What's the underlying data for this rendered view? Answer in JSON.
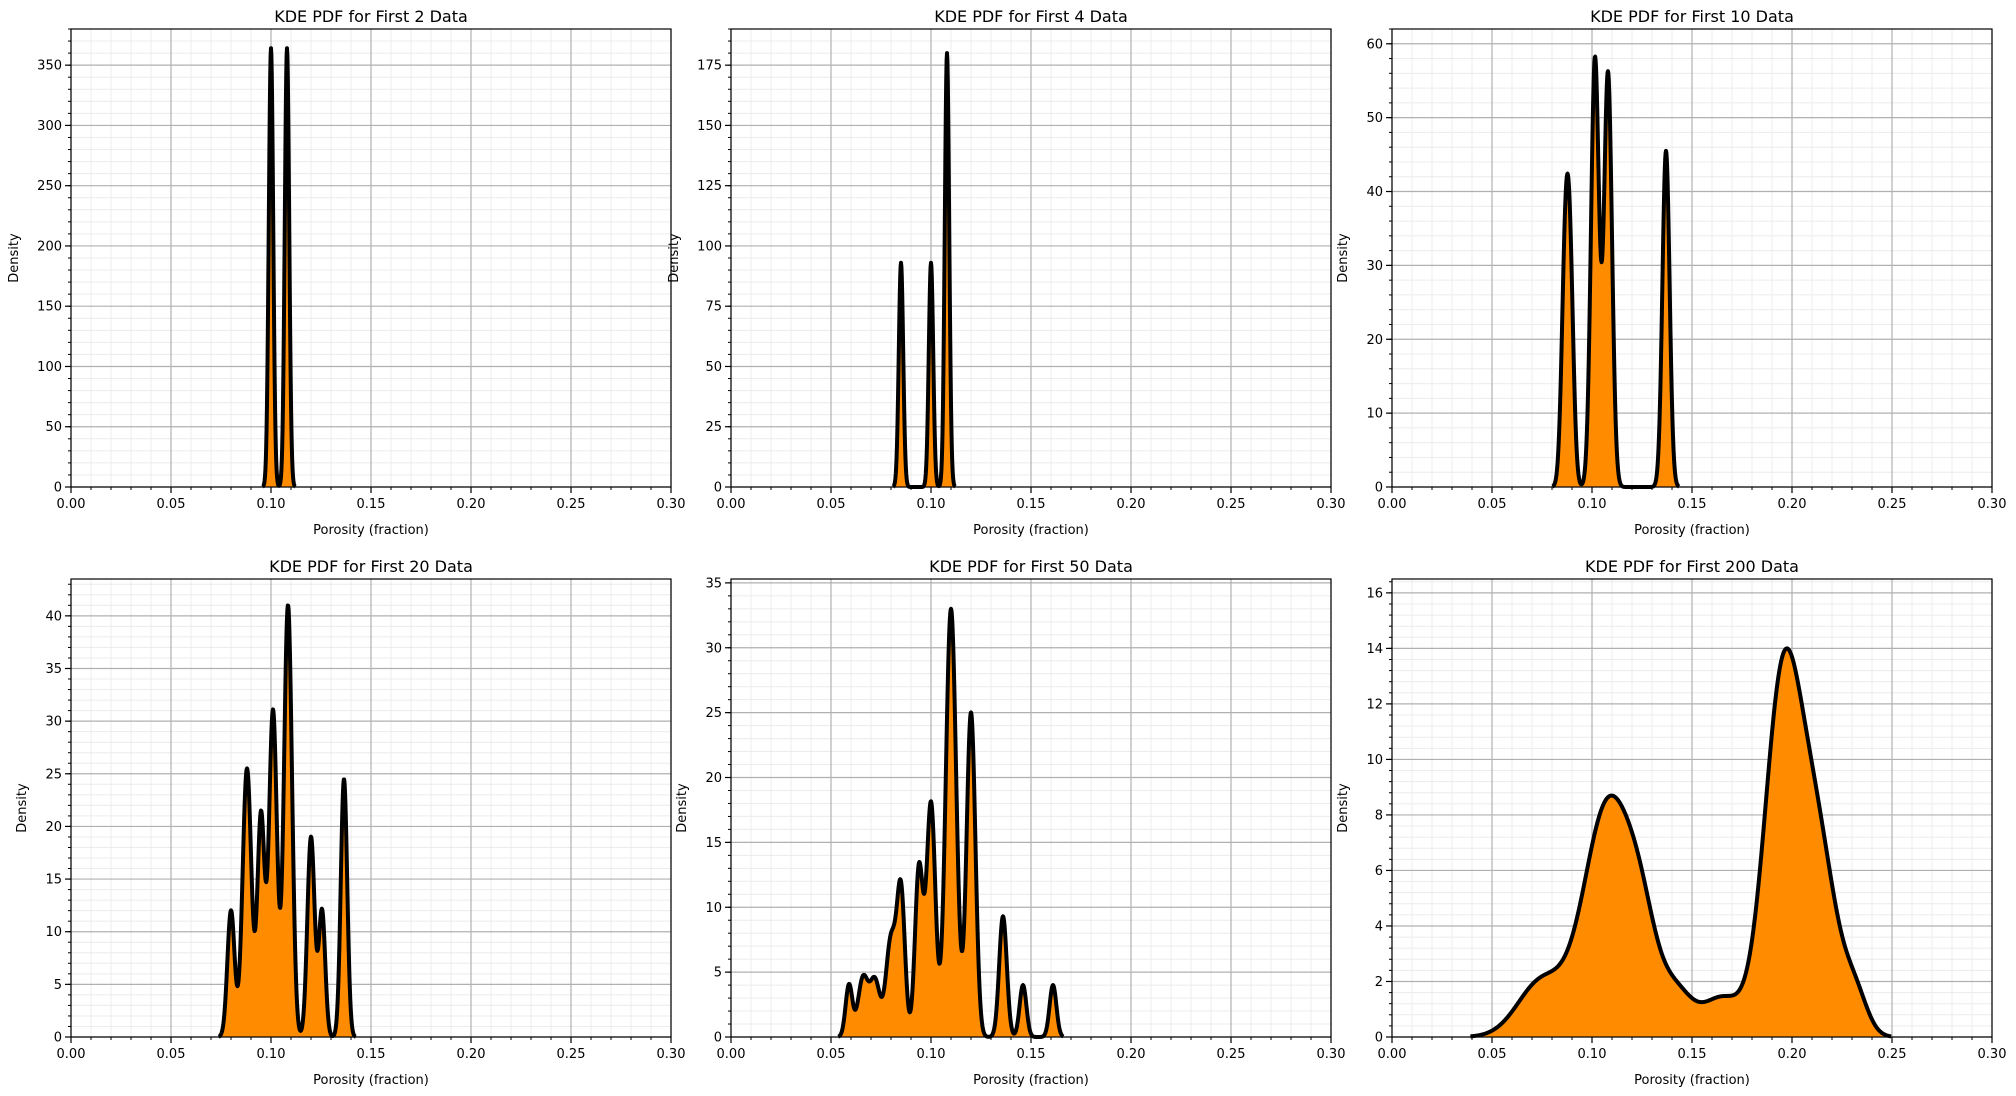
{
  "chart_data": [
    {
      "type": "area",
      "title": "KDE PDF for First 2 Data",
      "xlabel": "Porosity (fraction)",
      "ylabel": "Density",
      "xlim": [
        0,
        0.3
      ],
      "ylim": [
        0,
        380
      ],
      "xticks": [
        "0.00",
        "0.05",
        "0.10",
        "0.15",
        "0.20",
        "0.25",
        "0.30"
      ],
      "yticks": [
        "0",
        "50",
        "100",
        "150",
        "200",
        "250",
        "300",
        "350"
      ],
      "ytick_values": [
        0,
        50,
        100,
        150,
        200,
        250,
        300,
        350
      ],
      "grid": true,
      "fill_color": "#ff8c00",
      "line_color": "#000000",
      "peaks": [
        {
          "center": 0.1,
          "sigma": 0.0011,
          "height": 364
        },
        {
          "center": 0.108,
          "sigma": 0.0011,
          "height": 364
        }
      ]
    },
    {
      "type": "area",
      "title": "KDE PDF for First 4 Data",
      "xlabel": "Porosity (fraction)",
      "ylabel": "Density",
      "xlim": [
        0,
        0.3
      ],
      "ylim": [
        0,
        190
      ],
      "xticks": [
        "0.00",
        "0.05",
        "0.10",
        "0.15",
        "0.20",
        "0.25",
        "0.30"
      ],
      "yticks": [
        "0",
        "25",
        "50",
        "75",
        "100",
        "125",
        "150",
        "175"
      ],
      "ytick_values": [
        0,
        25,
        50,
        75,
        100,
        125,
        150,
        175
      ],
      "grid": true,
      "fill_color": "#ff8c00",
      "line_color": "#000000",
      "peaks": [
        {
          "center": 0.085,
          "sigma": 0.0011,
          "height": 93
        },
        {
          "center": 0.1,
          "sigma": 0.0011,
          "height": 93
        },
        {
          "center": 0.108,
          "sigma": 0.0011,
          "height": 180
        }
      ]
    },
    {
      "type": "area",
      "title": "KDE PDF for First 10 Data",
      "xlabel": "Porosity (fraction)",
      "ylabel": "Density",
      "xlim": [
        0,
        0.3
      ],
      "ylim": [
        0,
        62
      ],
      "xticks": [
        "0.00",
        "0.05",
        "0.10",
        "0.15",
        "0.20",
        "0.25",
        "0.30"
      ],
      "yticks": [
        "0",
        "10",
        "20",
        "30",
        "40",
        "50",
        "60"
      ],
      "ytick_values": [
        0,
        10,
        20,
        30,
        40,
        50,
        60
      ],
      "grid": true,
      "fill_color": "#ff8c00",
      "line_color": "#000000",
      "peaks": [
        {
          "center": 0.0865,
          "sigma": 0.0018,
          "height": 27
        },
        {
          "center": 0.089,
          "sigma": 0.0018,
          "height": 27
        },
        {
          "center": 0.1015,
          "sigma": 0.002,
          "height": 58
        },
        {
          "center": 0.108,
          "sigma": 0.002,
          "height": 56
        },
        {
          "center": 0.137,
          "sigma": 0.0018,
          "height": 45.5
        }
      ]
    },
    {
      "type": "area",
      "title": "KDE PDF for First 20 Data",
      "xlabel": "Porosity (fraction)",
      "ylabel": "Density",
      "xlim": [
        0,
        0.3
      ],
      "ylim": [
        0,
        43.5
      ],
      "xticks": [
        "0.00",
        "0.05",
        "0.10",
        "0.15",
        "0.20",
        "0.25",
        "0.30"
      ],
      "yticks": [
        "0",
        "5",
        "10",
        "15",
        "20",
        "25",
        "30",
        "35",
        "40"
      ],
      "ytick_values": [
        0,
        5,
        10,
        15,
        20,
        25,
        30,
        35,
        40
      ],
      "grid": true,
      "fill_color": "#ff8c00",
      "line_color": "#000000",
      "peaks": [
        {
          "center": 0.08,
          "sigma": 0.0018,
          "height": 12
        },
        {
          "center": 0.088,
          "sigma": 0.0022,
          "height": 25.5
        },
        {
          "center": 0.095,
          "sigma": 0.0018,
          "height": 21
        },
        {
          "center": 0.101,
          "sigma": 0.002,
          "height": 31
        },
        {
          "center": 0.1085,
          "sigma": 0.002,
          "height": 41
        },
        {
          "center": 0.12,
          "sigma": 0.0018,
          "height": 19
        },
        {
          "center": 0.1255,
          "sigma": 0.0016,
          "height": 12
        },
        {
          "center": 0.1365,
          "sigma": 0.0016,
          "height": 24.5
        }
      ]
    },
    {
      "type": "area",
      "title": "KDE PDF for First 50 Data",
      "xlabel": "Porosity (fraction)",
      "ylabel": "Density",
      "xlim": [
        0,
        0.3
      ],
      "ylim": [
        0,
        35.3
      ],
      "xticks": [
        "0.00",
        "0.05",
        "0.10",
        "0.15",
        "0.20",
        "0.25",
        "0.30"
      ],
      "yticks": [
        "0",
        "5",
        "10",
        "15",
        "20",
        "25",
        "30",
        "35"
      ],
      "ytick_values": [
        0,
        5,
        10,
        15,
        20,
        25,
        30,
        35
      ],
      "grid": true,
      "fill_color": "#ff8c00",
      "line_color": "#000000",
      "peaks": [
        {
          "center": 0.059,
          "sigma": 0.0017,
          "height": 4
        },
        {
          "center": 0.066,
          "sigma": 0.0025,
          "height": 4.5
        },
        {
          "center": 0.072,
          "sigma": 0.0025,
          "height": 4.3
        },
        {
          "center": 0.08,
          "sigma": 0.0025,
          "height": 7.5
        },
        {
          "center": 0.085,
          "sigma": 0.002,
          "height": 11
        },
        {
          "center": 0.094,
          "sigma": 0.002,
          "height": 13
        },
        {
          "center": 0.1,
          "sigma": 0.0022,
          "height": 18
        },
        {
          "center": 0.11,
          "sigma": 0.0026,
          "height": 33
        },
        {
          "center": 0.12,
          "sigma": 0.0022,
          "height": 25
        },
        {
          "center": 0.136,
          "sigma": 0.0019,
          "height": 9.3
        },
        {
          "center": 0.146,
          "sigma": 0.0017,
          "height": 4
        },
        {
          "center": 0.161,
          "sigma": 0.0017,
          "height": 4
        }
      ]
    },
    {
      "type": "area",
      "title": "KDE PDF for First 200 Data",
      "xlabel": "Porosity (fraction)",
      "ylabel": "Density",
      "xlim": [
        0,
        0.3
      ],
      "ylim": [
        0,
        16.5
      ],
      "xticks": [
        "0.00",
        "0.05",
        "0.10",
        "0.15",
        "0.20",
        "0.25",
        "0.30"
      ],
      "yticks": [
        "0",
        "2",
        "4",
        "6",
        "8",
        "10",
        "12",
        "14",
        "16"
      ],
      "ytick_values": [
        0,
        2,
        4,
        6,
        8,
        10,
        12,
        14,
        16
      ],
      "grid": true,
      "fill_color": "#ff8c00",
      "line_color": "#000000",
      "peaks": [
        {
          "center": 0.075,
          "sigma": 0.012,
          "height": 2
        },
        {
          "center": 0.108,
          "sigma": 0.012,
          "height": 8.3
        },
        {
          "center": 0.125,
          "sigma": 0.008,
          "height": 2.8
        },
        {
          "center": 0.142,
          "sigma": 0.008,
          "height": 1.5
        },
        {
          "center": 0.165,
          "sigma": 0.01,
          "height": 1.4
        },
        {
          "center": 0.195,
          "sigma": 0.009,
          "height": 12
        },
        {
          "center": 0.212,
          "sigma": 0.01,
          "height": 7
        },
        {
          "center": 0.232,
          "sigma": 0.006,
          "height": 1.2
        }
      ]
    }
  ]
}
